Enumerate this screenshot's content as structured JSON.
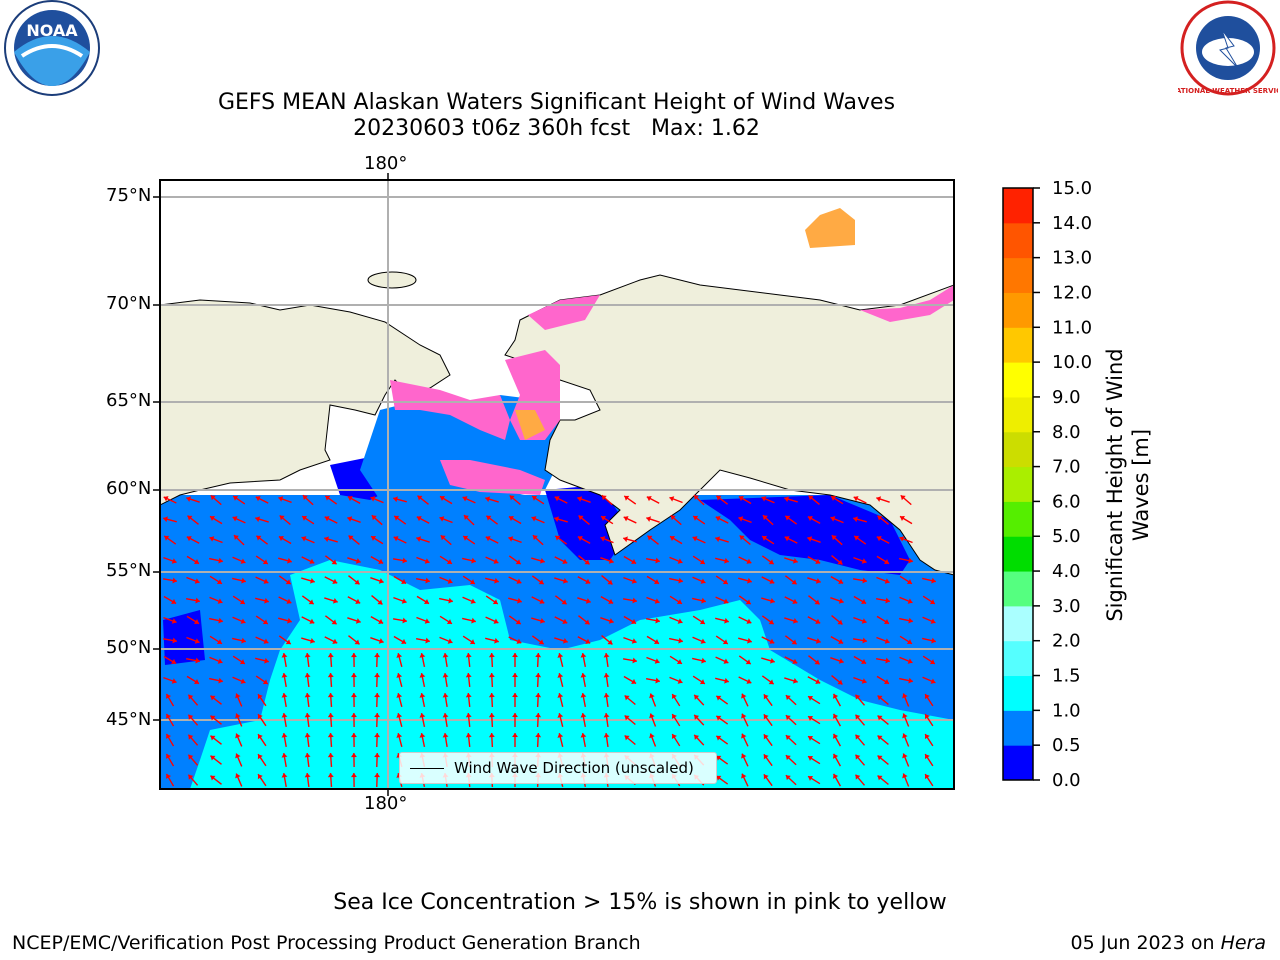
{
  "title": {
    "line1": "GEFS MEAN Alaskan Waters Significant Height of Wind Waves",
    "line2": "20230603 t06z 360h fcst   Max: 1.62"
  },
  "map": {
    "lon_labels_top": [
      "180°"
    ],
    "lon_labels_bottom": [
      "180°"
    ],
    "lat_labels": [
      "75°N",
      "70°N",
      "65°N",
      "60°N",
      "55°N",
      "50°N",
      "45°N"
    ],
    "legend_label": "Wind Wave Direction (unscaled)",
    "colors": {
      "land": "#efefdc",
      "arrow": "#ff0000",
      "ice": "#ff66cc",
      "ice_light": "#ffaa44"
    }
  },
  "colorbar": {
    "label": "Significant Height of Wind Waves [m]",
    "ticks": [
      "0.0",
      "0.5",
      "1.0",
      "1.5",
      "2.0",
      "3.0",
      "4.0",
      "5.0",
      "6.0",
      "7.0",
      "8.0",
      "9.0",
      "10.0",
      "11.0",
      "12.0",
      "13.0",
      "14.0",
      "15.0"
    ],
    "colors": [
      "#0000ff",
      "#0080ff",
      "#00ffff",
      "#55ffff",
      "#aaffff",
      "#55ff80",
      "#00dd00",
      "#55ee00",
      "#aaee00",
      "#ccdd00",
      "#eeee00",
      "#ffff00",
      "#ffc800",
      "#ff9900",
      "#ff7700",
      "#ff5500",
      "#ff2200"
    ]
  },
  "footer": {
    "ice_note": "Sea Ice Concentration > 15% is shown in pink to yellow",
    "left": "NCEP/EMC/Verification Post Processing Product Generation Branch",
    "right_date": "05 Jun 2023 on ",
    "right_machine": "Hera"
  },
  "logos": {
    "noaa": "NOAA",
    "nws": "NATIONAL WEATHER SERVICE"
  }
}
